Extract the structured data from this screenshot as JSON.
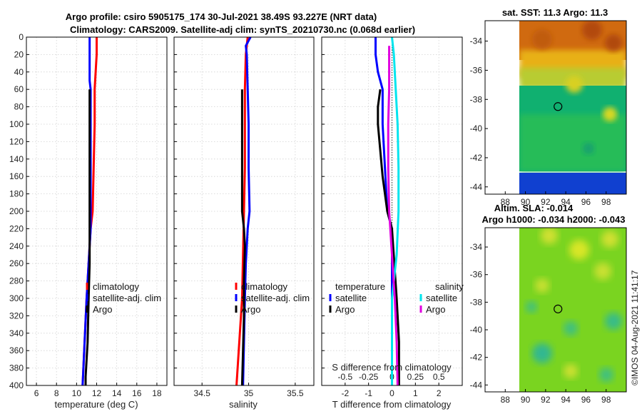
{
  "figure": {
    "title_line1": "Argo profile: csiro 5905175_174 30-Jul-2021 38.49S 93.227E (NRT data)",
    "title_line2": "Climatology: CARS2009. Satellite-adj clim: synTS_20210730.nc (0.068d earlier)",
    "sst_title": "sat. SST: 11.3 Argo: 11.3",
    "sla_title_line1": "Altim. SLA: -0.014",
    "sla_title_line2": "Argo h1000: -0.034 h2000: -0.043",
    "watermark": "©IMOS 04-Aug-2021 11:41:17",
    "colors": {
      "climatology": "#ff0000",
      "satellite": "#0000ff",
      "argo": "#000000",
      "temp_sat_diff": "#0000ff",
      "sal_sat_diff": "#00e5ee",
      "sal_argo_diff": "#e000e0"
    }
  },
  "chart_data": [
    {
      "type": "line",
      "panel": "temperature",
      "xlabel": "temperature (deg C)",
      "xlim": [
        5,
        19
      ],
      "xticks": [
        6,
        8,
        10,
        12,
        14,
        16,
        18
      ],
      "ylim": [
        0,
        400
      ],
      "yticks": [
        0,
        20,
        40,
        60,
        80,
        100,
        120,
        140,
        160,
        180,
        200,
        220,
        240,
        260,
        280,
        300,
        320,
        340,
        360,
        380,
        400
      ],
      "ydir": "reverse",
      "grid": true,
      "legend": [
        "climatology",
        "satellite-adj. clim",
        "Argo"
      ],
      "series": [
        {
          "name": "climatology",
          "color": "#ff0000",
          "depth": [
            0,
            20,
            40,
            60,
            80,
            100,
            150,
            200,
            220,
            260,
            300,
            350,
            400
          ],
          "values": [
            12.0,
            12.0,
            11.9,
            11.8,
            11.8,
            11.8,
            11.7,
            11.6,
            11.4,
            11.2,
            11.0,
            10.8,
            10.6
          ]
        },
        {
          "name": "satellite-adj. clim",
          "color": "#0000ff",
          "depth": [
            0,
            20,
            40,
            50,
            60,
            100,
            150,
            200,
            220,
            260,
            300,
            350,
            400
          ],
          "values": [
            11.3,
            11.3,
            11.3,
            11.3,
            11.4,
            11.4,
            11.4,
            11.4,
            11.4,
            11.2,
            11.0,
            10.8,
            10.6
          ]
        },
        {
          "name": "Argo",
          "color": "#000000",
          "depth": [
            60,
            80,
            100,
            150,
            200,
            220,
            260,
            300,
            350,
            390,
            400
          ],
          "values": [
            11.3,
            11.3,
            11.3,
            11.3,
            11.3,
            11.3,
            11.3,
            11.2,
            11.1,
            10.9,
            10.9
          ]
        }
      ]
    },
    {
      "type": "line",
      "panel": "salinity",
      "xlabel": "salinity",
      "xlim": [
        34.2,
        35.7
      ],
      "xticks": [
        34.5,
        35,
        35.5
      ],
      "ylim": [
        0,
        400
      ],
      "ydir": "reverse",
      "grid": true,
      "legend": [
        "climatology",
        "satellite-adj. clim",
        "Argo"
      ],
      "series": [
        {
          "name": "climatology",
          "color": "#ff0000",
          "depth": [
            0,
            20,
            60,
            100,
            150,
            200,
            250,
            300,
            350,
            400
          ],
          "values": [
            34.99,
            34.97,
            34.96,
            34.96,
            34.96,
            34.95,
            34.94,
            34.93,
            34.9,
            34.87
          ]
        },
        {
          "name": "satellite-adj. clim",
          "color": "#0000ff",
          "depth": [
            0,
            10,
            20,
            60,
            100,
            150,
            200,
            220,
            260,
            300,
            350,
            400
          ],
          "values": [
            35.02,
            34.97,
            34.98,
            34.99,
            35.0,
            35.0,
            35.01,
            34.99,
            34.97,
            34.96,
            34.95,
            34.94
          ]
        },
        {
          "name": "Argo",
          "color": "#000000",
          "depth": [
            60,
            100,
            150,
            200,
            220,
            240,
            280,
            320,
            360,
            400
          ],
          "values": [
            34.93,
            34.93,
            34.93,
            34.93,
            34.95,
            34.96,
            34.95,
            34.95,
            34.94,
            34.93
          ]
        }
      ]
    },
    {
      "type": "line",
      "panel": "difference",
      "xlabel": "T difference from climatology",
      "xlabel_top": "S difference from climatology",
      "xlim": [
        -3,
        3
      ],
      "xticks": [
        -2,
        -1,
        0,
        1,
        2
      ],
      "xticks_top": [
        -0.5,
        -0.25,
        0,
        0.25,
        0.5
      ],
      "ylim": [
        0,
        400
      ],
      "ydir": "reverse",
      "grid": true,
      "legend_headers": [
        "temperature",
        "salinity"
      ],
      "legend": [
        "satellite",
        "Argo",
        "satellite",
        "Argo"
      ],
      "series": [
        {
          "name": "temperature satellite",
          "color": "#0000ff",
          "depth": [
            0,
            20,
            40,
            60,
            100,
            150,
            200,
            220,
            260,
            300,
            400
          ],
          "values": [
            -0.7,
            -0.7,
            -0.6,
            -0.4,
            -0.4,
            -0.3,
            -0.2,
            0.0,
            0.0,
            0.0,
            0.0
          ]
        },
        {
          "name": "temperature Argo",
          "color": "#000000",
          "depth": [
            60,
            80,
            100,
            130,
            160,
            200,
            220,
            260,
            300,
            350,
            400
          ],
          "values": [
            -0.5,
            -0.6,
            -0.6,
            -0.5,
            -0.4,
            -0.2,
            0.0,
            0.1,
            0.2,
            0.3,
            0.3
          ]
        },
        {
          "name": "salinity satellite",
          "color": "#00e5ee",
          "depth": [
            0,
            20,
            60,
            100,
            150,
            200,
            250,
            300,
            400
          ],
          "values": [
            0.0,
            0.02,
            0.04,
            0.06,
            0.07,
            0.07,
            0.05,
            0.0,
            0.0
          ]
        },
        {
          "name": "salinity Argo",
          "color": "#e000e0",
          "depth": [
            10,
            60,
            100,
            150,
            200,
            250,
            300,
            350,
            400
          ],
          "values": [
            -0.03,
            -0.03,
            -0.04,
            -0.04,
            -0.03,
            0.0,
            0.03,
            0.05,
            0.06
          ]
        }
      ]
    },
    {
      "type": "heatmap",
      "panel": "sst_map",
      "title": "sat. SST: 11.3 Argo: 11.3",
      "xticks": [
        88,
        90,
        92,
        94,
        96,
        98
      ],
      "yticks": [
        -34,
        -36,
        -38,
        -40,
        -42,
        -44
      ],
      "argo_position": {
        "lon": 93.227,
        "lat": -38.49
      }
    },
    {
      "type": "heatmap",
      "panel": "sla_map",
      "title": "Altim. SLA: -0.014",
      "xticks": [
        88,
        90,
        92,
        94,
        96,
        98
      ],
      "yticks": [
        -34,
        -36,
        -38,
        -40,
        -42,
        -44
      ],
      "argo_position": {
        "lon": 93.227,
        "lat": -38.49
      }
    }
  ]
}
